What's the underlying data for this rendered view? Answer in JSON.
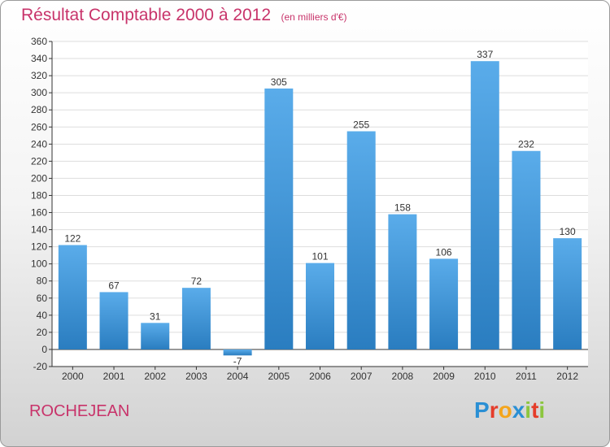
{
  "header": {
    "title": "Résultat Comptable 2000 à 2012",
    "subtitle": "(en milliers d'€)"
  },
  "footer": {
    "commune": "ROCHEJEAN",
    "logo_text": [
      "P",
      "r",
      "o",
      "x",
      "i",
      "t",
      "i"
    ]
  },
  "colors": {
    "bar_top": "#5aacea",
    "bar_bottom": "#2a7dc0",
    "title": "#c8336a",
    "axis": "#333333",
    "grid": "#dddddd"
  },
  "chart_data": {
    "type": "bar",
    "title": "Résultat Comptable 2000 à 2012",
    "categories": [
      "2000",
      "2001",
      "2002",
      "2003",
      "2004",
      "2005",
      "2006",
      "2007",
      "2008",
      "2009",
      "2010",
      "2011",
      "2012"
    ],
    "values": [
      122,
      67,
      31,
      72,
      -7,
      305,
      101,
      255,
      158,
      106,
      337,
      232,
      130
    ],
    "ylim": [
      -20,
      360
    ],
    "ytick_step": 20,
    "grid": true,
    "xlabel": "",
    "ylabel": ""
  }
}
